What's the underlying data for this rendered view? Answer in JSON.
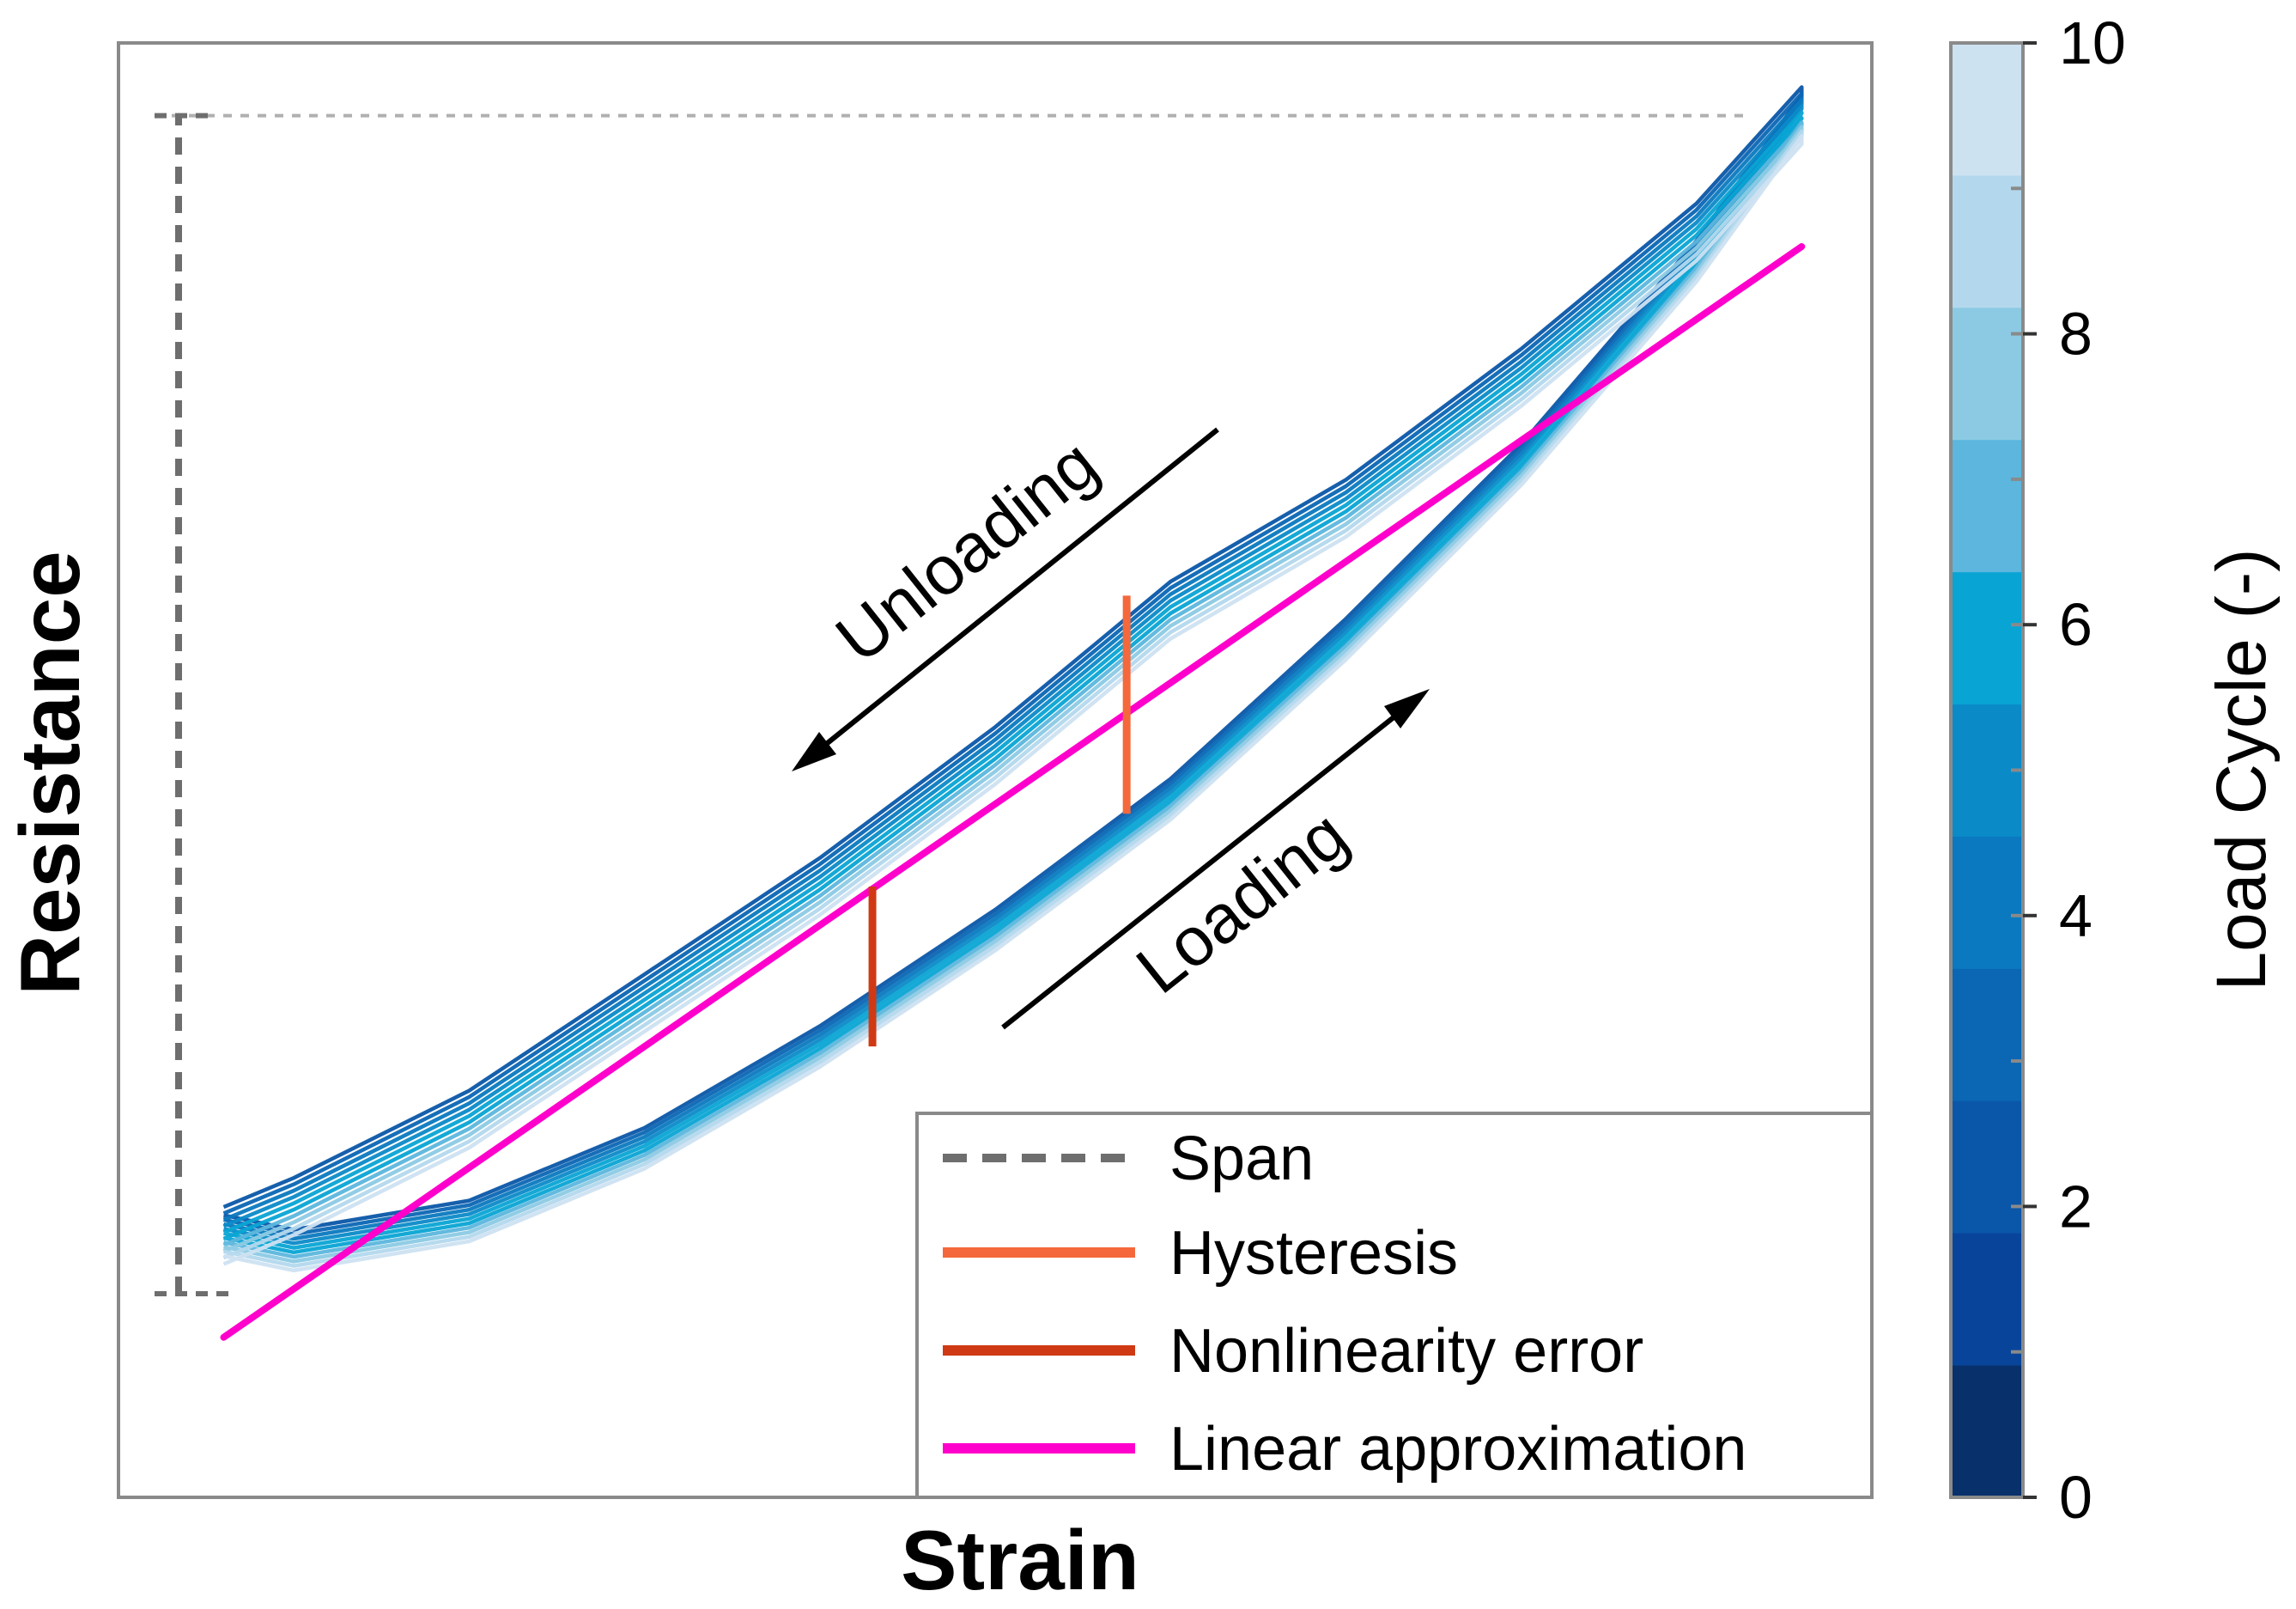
{
  "chart_data": {
    "type": "line",
    "xlabel": "Strain",
    "ylabel": "Resistance",
    "xlim": [
      0,
      1
    ],
    "ylim": [
      0,
      1
    ],
    "grid": false,
    "legend_placement": "bottom-right",
    "legend": [
      {
        "label": "Span",
        "style": "dashed",
        "color": "#6e6e6e"
      },
      {
        "label": "Hysteresis",
        "style": "solid",
        "color": "#f4683c"
      },
      {
        "label": "Nonlinearity error",
        "style": "solid",
        "color": "#cf3a14"
      },
      {
        "label": "Linear approximation",
        "style": "solid",
        "color": "#ff00cc"
      }
    ],
    "annotations": {
      "unloading": "Unloading",
      "loading": "Loading"
    },
    "colorbar": {
      "title": "Load Cycle (-)",
      "range": [
        0,
        10
      ],
      "ticks": [
        "0",
        "2",
        "4",
        "6",
        "8",
        "10"
      ],
      "colors": [
        "#08306b",
        "#08459a",
        "#0a56a8",
        "#0b66b4",
        "#0a79bf",
        "#0b8ac8",
        "#08a4d4",
        "#5cb6dd",
        "#8ccae4",
        "#b3d8ed",
        "#cde2f1"
      ]
    },
    "series_count": 10,
    "loading_curve": {
      "x": [
        0.06,
        0.1,
        0.2,
        0.3,
        0.4,
        0.5,
        0.6,
        0.7,
        0.8,
        0.9,
        0.96
      ],
      "y": [
        0.18,
        0.17,
        0.19,
        0.24,
        0.31,
        0.39,
        0.48,
        0.59,
        0.71,
        0.85,
        0.95
      ]
    },
    "unloading_curve": {
      "x": [
        0.96,
        0.9,
        0.8,
        0.7,
        0.6,
        0.5,
        0.4,
        0.3,
        0.2,
        0.1,
        0.06
      ],
      "y": [
        0.95,
        0.87,
        0.77,
        0.68,
        0.61,
        0.51,
        0.42,
        0.34,
        0.26,
        0.2,
        0.18
      ]
    },
    "linear_approximation": {
      "x": [
        0.06,
        0.96
      ],
      "y": [
        0.11,
        0.86
      ]
    },
    "span": {
      "y_min": 0.14,
      "y_max": 0.95
    },
    "hysteresis_marker": {
      "x": 0.575,
      "y": [
        0.47,
        0.62
      ]
    },
    "nonlinearity_marker": {
      "x": 0.43,
      "y": [
        0.31,
        0.42
      ]
    }
  }
}
